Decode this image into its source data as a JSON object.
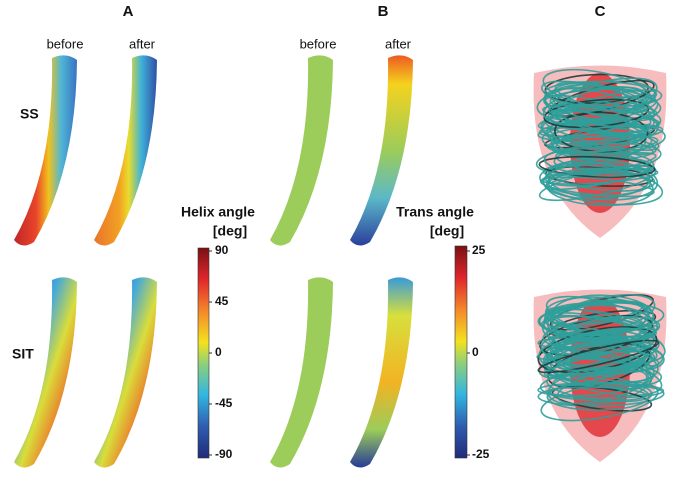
{
  "panels": [
    {
      "label": "A",
      "columns": [
        "before",
        "after"
      ],
      "colorbar": {
        "title": "Helix angle",
        "unit": "[deg]",
        "ticks": [
          90,
          45,
          0,
          -45,
          -90
        ]
      }
    },
    {
      "label": "B",
      "columns": [
        "before",
        "after"
      ],
      "colorbar": {
        "title": "Trans angle",
        "unit": "[deg]",
        "ticks": [
          25,
          0,
          -25
        ]
      }
    },
    {
      "label": "C"
    }
  ],
  "rows": [
    "SS",
    "SIT"
  ]
}
